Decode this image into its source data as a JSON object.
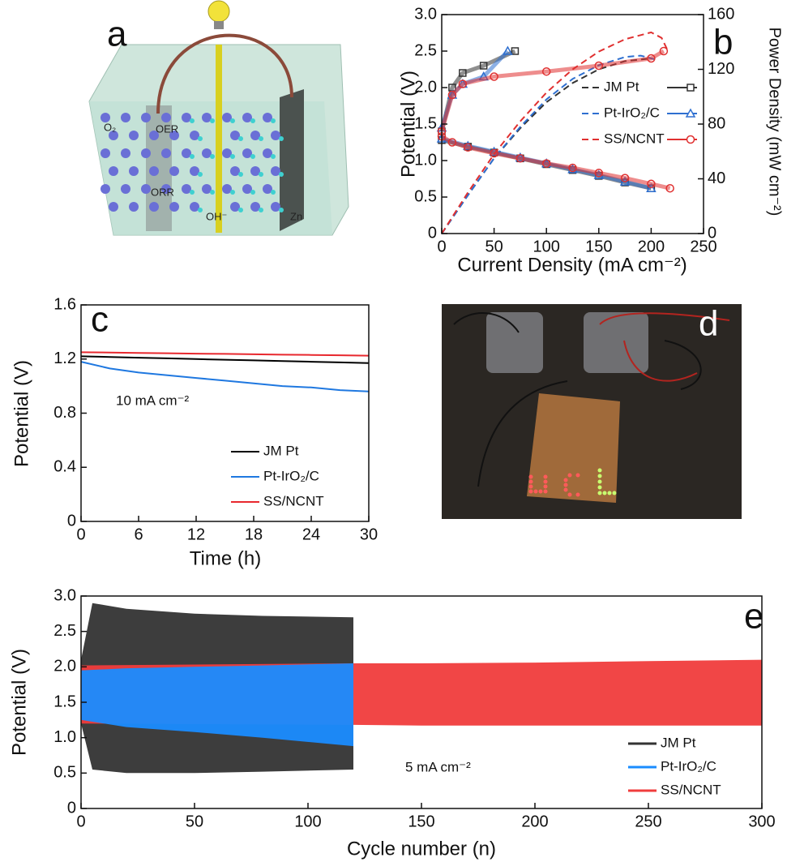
{
  "schematic": {
    "label": "a",
    "labels": [
      "O₂",
      "OER",
      "ORR",
      "OH⁻",
      "Zn"
    ]
  },
  "photo": {
    "label": "d"
  },
  "chart_data": [
    {
      "type": "polarization",
      "label": "b",
      "xlabel": "Current Density (mA cm⁻²)",
      "ylabel": "Potential (V)",
      "y2label": "Power Density (mW cm⁻²)",
      "xlim": [
        0,
        250
      ],
      "xticks": [
        0,
        50,
        100,
        150,
        200,
        250
      ],
      "ylim": [
        0,
        3
      ],
      "yticks": [
        0,
        0.5,
        {
          "value": 1,
          "label": "1.0"
        },
        1.5,
        {
          "value": 2,
          "label": "2.0"
        },
        2.5,
        {
          "value": 3,
          "label": "3.0"
        }
      ],
      "y2lim": [
        0,
        160
      ],
      "y2ticks": [
        0,
        40,
        80,
        120,
        160
      ],
      "series": [
        {
          "name": "JM Pt",
          "color": "#333333",
          "marker": "square",
          "charge": {
            "x": [
              0,
              10,
              20,
              40,
              70
            ],
            "values": [
              1.4,
              2.0,
              2.2,
              2.3,
              2.5
            ]
          },
          "discharge": {
            "x": [
              0,
              25,
              50,
              75,
              100,
              125,
              150,
              175,
              200
            ],
            "values": [
              1.28,
              1.19,
              1.11,
              1.03,
              0.95,
              0.87,
              0.79,
              0.7,
              0.62
            ]
          },
          "power": {
            "axis": "y2",
            "x": [
              0,
              25,
              50,
              75,
              100,
              125,
              150,
              175,
              200
            ],
            "values": [
              0,
              28,
              55,
              77,
              96,
              110,
              120,
              126,
              128
            ]
          }
        },
        {
          "name": "Pt-IrO₂/C",
          "color": "#2e6fd0",
          "marker": "triangle",
          "charge": {
            "x": [
              0,
              10,
              20,
              40,
              63
            ],
            "values": [
              1.45,
              1.9,
              2.05,
              2.15,
              2.5
            ]
          },
          "discharge": {
            "x": [
              0,
              25,
              50,
              75,
              100,
              125,
              150,
              175,
              200
            ],
            "values": [
              1.3,
              1.2,
              1.12,
              1.04,
              0.96,
              0.88,
              0.8,
              0.71,
              0.62
            ]
          },
          "power": {
            "axis": "y2",
            "x": [
              0,
              25,
              50,
              75,
              100,
              125,
              150,
              175,
              190,
              205
            ],
            "values": [
              0,
              28,
              55,
              78,
              98,
              113,
              123,
              129,
              130,
              127
            ]
          }
        },
        {
          "name": "SS/NCNT",
          "color": "#e03030",
          "marker": "circle",
          "charge": {
            "x": [
              0,
              10,
              20,
              50,
              100,
              150,
              200,
              212
            ],
            "values": [
              1.4,
              1.9,
              2.05,
              2.15,
              2.22,
              2.3,
              2.4,
              2.5
            ]
          },
          "discharge": {
            "x": [
              0,
              10,
              25,
              50,
              75,
              100,
              125,
              150,
              175,
              200,
              218
            ],
            "values": [
              1.33,
              1.25,
              1.18,
              1.1,
              1.03,
              0.96,
              0.9,
              0.83,
              0.76,
              0.68,
              0.62
            ]
          },
          "power": {
            "axis": "y2",
            "x": [
              0,
              25,
              50,
              75,
              100,
              125,
              150,
              175,
              200,
              210,
              215
            ],
            "values": [
              0,
              30,
              58,
              82,
              103,
              120,
              133,
              142,
              147,
              143,
              135
            ]
          }
        }
      ]
    },
    {
      "type": "line",
      "label": "c",
      "annotation": "10 mA cm⁻²",
      "xlabel": "Time (h)",
      "ylabel": "Potential (V)",
      "xlim": [
        0,
        30
      ],
      "xticks": [
        0,
        6,
        12,
        18,
        24,
        30
      ],
      "ylim": [
        0,
        1.6
      ],
      "yticks": [
        0,
        0.4,
        0.8,
        1.2,
        1.6
      ],
      "x": [
        0,
        3,
        6,
        9,
        12,
        15,
        18,
        21,
        24,
        27,
        30
      ],
      "series": [
        {
          "name": "JM Pt",
          "color": "#000000",
          "values": [
            1.22,
            1.215,
            1.21,
            1.205,
            1.2,
            1.195,
            1.19,
            1.185,
            1.18,
            1.175,
            1.17
          ]
        },
        {
          "name": "Pt-IrO₂/C",
          "color": "#1f78e0",
          "values": [
            1.18,
            1.13,
            1.1,
            1.08,
            1.06,
            1.04,
            1.02,
            1.0,
            0.99,
            0.97,
            0.96
          ]
        },
        {
          "name": "SS/NCNT",
          "color": "#e8282e",
          "values": [
            1.25,
            1.248,
            1.245,
            1.243,
            1.24,
            1.238,
            1.235,
            1.232,
            1.23,
            1.228,
            1.225
          ]
        }
      ]
    },
    {
      "type": "range",
      "label": "e",
      "annotation": "5 mA cm⁻²",
      "xlabel": "Cycle number (n)",
      "ylabel": "Potential (V)",
      "xlim": [
        0,
        300
      ],
      "xticks": [
        0,
        50,
        100,
        150,
        200,
        250,
        300
      ],
      "ylim": [
        0,
        3
      ],
      "yticks": [
        0,
        0.5,
        {
          "value": 1,
          "label": "1.0"
        },
        1.5,
        {
          "value": 2,
          "label": "2.0"
        },
        2.5,
        {
          "value": 3,
          "label": "3.0"
        }
      ],
      "series": [
        {
          "name": "JM Pt",
          "color": "#333333",
          "x": [
            0,
            5,
            20,
            50,
            80,
            120
          ],
          "upper": [
            2.1,
            2.9,
            2.82,
            2.75,
            2.72,
            2.7
          ],
          "lower": [
            1.2,
            0.55,
            0.5,
            0.5,
            0.52,
            0.55
          ]
        },
        {
          "name": "SS/NCNT",
          "color": "#f03c3c",
          "x": [
            0,
            120,
            150,
            200,
            250,
            300
          ],
          "upper": [
            2.02,
            2.05,
            2.05,
            2.06,
            2.08,
            2.1
          ],
          "lower": [
            1.2,
            1.18,
            1.17,
            1.17,
            1.17,
            1.17
          ]
        },
        {
          "name": "Pt-IrO₂/C",
          "color": "#1a8cff",
          "x": [
            0,
            20,
            50,
            80,
            120
          ],
          "upper": [
            1.95,
            1.98,
            2.0,
            2.02,
            2.05
          ],
          "lower": [
            1.25,
            1.15,
            1.08,
            1.0,
            0.88
          ]
        }
      ]
    }
  ]
}
